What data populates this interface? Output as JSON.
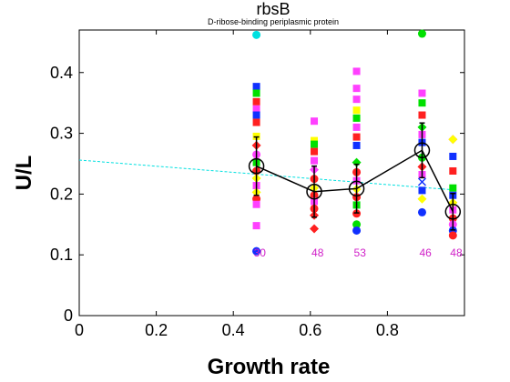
{
  "chart_data": {
    "type": "scatter",
    "title": "rbsB",
    "subtitle": "D-ribose-binding periplasmic protein",
    "xlabel": "Growth rate",
    "ylabel": "U/L",
    "xlim": [
      0,
      1.0
    ],
    "ylim": [
      0,
      0.47
    ],
    "x_ticks": [
      "0",
      "0.2",
      "0.4",
      "0.6",
      "0.8"
    ],
    "y_ticks": [
      "0",
      "0.1",
      "0.2",
      "0.3",
      "0.4"
    ],
    "grid": false,
    "trend_line": {
      "color": "#00e0e0",
      "x": [
        0,
        0.97
      ],
      "y": [
        0.256,
        0.207
      ]
    },
    "mean_series": {
      "color": "#000000",
      "x": [
        0.46,
        0.61,
        0.72,
        0.89,
        0.97
      ],
      "y": [
        0.246,
        0.204,
        0.209,
        0.272,
        0.171
      ],
      "error": [
        0.048,
        0.042,
        0.04,
        0.045,
        0.03
      ]
    },
    "counts": [
      {
        "x": 0.46,
        "label": "30"
      },
      {
        "x": 0.61,
        "label": "48"
      },
      {
        "x": 0.72,
        "label": "53"
      },
      {
        "x": 0.89,
        "label": "46"
      },
      {
        "x": 0.97,
        "label": "48"
      }
    ],
    "count_label_y": 0.097,
    "scatter_points": [
      {
        "x": 0.46,
        "y": 0.462,
        "shape": "circle",
        "color": "#00e0e0"
      },
      {
        "x": 0.46,
        "y": 0.377,
        "shape": "square",
        "color": "#1030ff"
      },
      {
        "x": 0.46,
        "y": 0.366,
        "shape": "square",
        "color": "#00e000"
      },
      {
        "x": 0.46,
        "y": 0.352,
        "shape": "square",
        "color": "#ff2020"
      },
      {
        "x": 0.46,
        "y": 0.34,
        "shape": "square",
        "color": "#ff40ff"
      },
      {
        "x": 0.46,
        "y": 0.33,
        "shape": "square",
        "color": "#1030ff"
      },
      {
        "x": 0.46,
        "y": 0.318,
        "shape": "square",
        "color": "#ff2020"
      },
      {
        "x": 0.46,
        "y": 0.295,
        "shape": "square",
        "color": "#ffff00"
      },
      {
        "x": 0.46,
        "y": 0.28,
        "shape": "diamond",
        "color": "#ff2020"
      },
      {
        "x": 0.46,
        "y": 0.265,
        "shape": "circle",
        "color": "#ff40ff"
      },
      {
        "x": 0.46,
        "y": 0.252,
        "shape": "square",
        "color": "#00e000"
      },
      {
        "x": 0.46,
        "y": 0.238,
        "shape": "circle",
        "color": "#ff2020"
      },
      {
        "x": 0.46,
        "y": 0.226,
        "shape": "diamond",
        "color": "#ffff00"
      },
      {
        "x": 0.46,
        "y": 0.214,
        "shape": "square",
        "color": "#ff40ff"
      },
      {
        "x": 0.46,
        "y": 0.203,
        "shape": "diamond",
        "color": "#ffff00"
      },
      {
        "x": 0.46,
        "y": 0.192,
        "shape": "circle",
        "color": "#ff2020"
      },
      {
        "x": 0.46,
        "y": 0.183,
        "shape": "square",
        "color": "#ff40ff"
      },
      {
        "x": 0.46,
        "y": 0.148,
        "shape": "square",
        "color": "#ff40ff"
      },
      {
        "x": 0.46,
        "y": 0.106,
        "shape": "circle",
        "color": "#1030ff"
      },
      {
        "x": 0.61,
        "y": 0.32,
        "shape": "square",
        "color": "#ff40ff"
      },
      {
        "x": 0.61,
        "y": 0.288,
        "shape": "square",
        "color": "#ffff00"
      },
      {
        "x": 0.61,
        "y": 0.282,
        "shape": "square",
        "color": "#00e000"
      },
      {
        "x": 0.61,
        "y": 0.27,
        "shape": "square",
        "color": "#ff2020"
      },
      {
        "x": 0.61,
        "y": 0.255,
        "shape": "square",
        "color": "#ff40ff"
      },
      {
        "x": 0.61,
        "y": 0.24,
        "shape": "diamond",
        "color": "#ff40ff"
      },
      {
        "x": 0.61,
        "y": 0.225,
        "shape": "circle",
        "color": "#ff2020"
      },
      {
        "x": 0.61,
        "y": 0.21,
        "shape": "diamond",
        "color": "#ffff00"
      },
      {
        "x": 0.61,
        "y": 0.198,
        "shape": "circle",
        "color": "#ff2020"
      },
      {
        "x": 0.61,
        "y": 0.188,
        "shape": "square",
        "color": "#ff40ff"
      },
      {
        "x": 0.61,
        "y": 0.176,
        "shape": "circle",
        "color": "#ff2020"
      },
      {
        "x": 0.61,
        "y": 0.165,
        "shape": "diamond",
        "color": "#ff2020"
      },
      {
        "x": 0.61,
        "y": 0.143,
        "shape": "diamond",
        "color": "#ff2020"
      },
      {
        "x": 0.72,
        "y": 0.402,
        "shape": "square",
        "color": "#ff40ff"
      },
      {
        "x": 0.72,
        "y": 0.374,
        "shape": "square",
        "color": "#ff40ff"
      },
      {
        "x": 0.72,
        "y": 0.356,
        "shape": "square",
        "color": "#ff40ff"
      },
      {
        "x": 0.72,
        "y": 0.338,
        "shape": "square",
        "color": "#ffff00"
      },
      {
        "x": 0.72,
        "y": 0.325,
        "shape": "square",
        "color": "#00e000"
      },
      {
        "x": 0.72,
        "y": 0.31,
        "shape": "square",
        "color": "#ff40ff"
      },
      {
        "x": 0.72,
        "y": 0.294,
        "shape": "square",
        "color": "#ff2020"
      },
      {
        "x": 0.72,
        "y": 0.28,
        "shape": "square",
        "color": "#1030ff"
      },
      {
        "x": 0.72,
        "y": 0.252,
        "shape": "diamond",
        "color": "#00e000"
      },
      {
        "x": 0.72,
        "y": 0.236,
        "shape": "circle",
        "color": "#ff2020"
      },
      {
        "x": 0.72,
        "y": 0.222,
        "shape": "square",
        "color": "#ff40ff"
      },
      {
        "x": 0.72,
        "y": 0.208,
        "shape": "diamond",
        "color": "#ffff00"
      },
      {
        "x": 0.72,
        "y": 0.195,
        "shape": "circle",
        "color": "#ff2020"
      },
      {
        "x": 0.72,
        "y": 0.182,
        "shape": "square",
        "color": "#00e000"
      },
      {
        "x": 0.72,
        "y": 0.168,
        "shape": "circle",
        "color": "#ff2020"
      },
      {
        "x": 0.72,
        "y": 0.15,
        "shape": "circle",
        "color": "#00e000"
      },
      {
        "x": 0.72,
        "y": 0.14,
        "shape": "circle",
        "color": "#1030ff"
      },
      {
        "x": 0.89,
        "y": 0.464,
        "shape": "circle",
        "color": "#00e000"
      },
      {
        "x": 0.89,
        "y": 0.366,
        "shape": "square",
        "color": "#ff40ff"
      },
      {
        "x": 0.89,
        "y": 0.35,
        "shape": "square",
        "color": "#00e000"
      },
      {
        "x": 0.89,
        "y": 0.33,
        "shape": "square",
        "color": "#ff2020"
      },
      {
        "x": 0.89,
        "y": 0.31,
        "shape": "diamond",
        "color": "#00e000"
      },
      {
        "x": 0.89,
        "y": 0.298,
        "shape": "square",
        "color": "#ff40ff"
      },
      {
        "x": 0.89,
        "y": 0.285,
        "shape": "square",
        "color": "#1030ff"
      },
      {
        "x": 0.89,
        "y": 0.26,
        "shape": "circle",
        "color": "#00e000"
      },
      {
        "x": 0.89,
        "y": 0.245,
        "shape": "diamond",
        "color": "#ff2020"
      },
      {
        "x": 0.89,
        "y": 0.232,
        "shape": "square",
        "color": "#ff40ff"
      },
      {
        "x": 0.89,
        "y": 0.22,
        "shape": "cross",
        "color": "#1030ff"
      },
      {
        "x": 0.89,
        "y": 0.206,
        "shape": "square",
        "color": "#1030ff"
      },
      {
        "x": 0.89,
        "y": 0.192,
        "shape": "diamond",
        "color": "#ffff00"
      },
      {
        "x": 0.89,
        "y": 0.17,
        "shape": "circle",
        "color": "#1030ff"
      },
      {
        "x": 0.97,
        "y": 0.29,
        "shape": "diamond",
        "color": "#ff40ff"
      },
      {
        "x": 0.97,
        "y": 0.29,
        "shape": "diamond",
        "color": "#ffff00"
      },
      {
        "x": 0.97,
        "y": 0.262,
        "shape": "square",
        "color": "#1030ff"
      },
      {
        "x": 0.97,
        "y": 0.238,
        "shape": "square",
        "color": "#ff2020"
      },
      {
        "x": 0.97,
        "y": 0.21,
        "shape": "square",
        "color": "#00e000"
      },
      {
        "x": 0.97,
        "y": 0.198,
        "shape": "square",
        "color": "#1030ff"
      },
      {
        "x": 0.97,
        "y": 0.186,
        "shape": "diamond",
        "color": "#ffff00"
      },
      {
        "x": 0.97,
        "y": 0.174,
        "shape": "square",
        "color": "#ff40ff"
      },
      {
        "x": 0.97,
        "y": 0.16,
        "shape": "circle",
        "color": "#ff2020"
      },
      {
        "x": 0.97,
        "y": 0.15,
        "shape": "circle",
        "color": "#ff40ff"
      },
      {
        "x": 0.97,
        "y": 0.14,
        "shape": "circle",
        "color": "#1030ff"
      },
      {
        "x": 0.97,
        "y": 0.132,
        "shape": "circle",
        "color": "#ff2020"
      }
    ]
  }
}
